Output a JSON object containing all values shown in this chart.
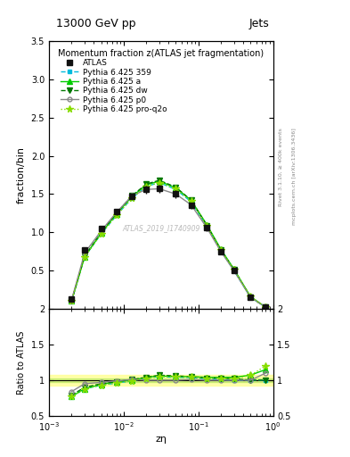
{
  "title_top": "13000 GeV pp",
  "title_right": "Jets",
  "right_label1": "Rivet 3.1.10, ≥ 400k events",
  "right_label2": "mcplots.cern.ch [arXiv:1306.3436]",
  "watermark": "ATLAS_2019_I1740909",
  "main_title": "Momentum fraction z(ATLAS jet fragmentation)",
  "xlabel": "zη",
  "ylabel_main": "fraction/bin",
  "ylabel_ratio": "Ratio to ATLAS",
  "ylim_main": [
    0.0,
    3.5
  ],
  "ylim_ratio": [
    0.5,
    2.0
  ],
  "xlim": [
    0.001,
    1.0
  ],
  "atlas_x": [
    0.002,
    0.003,
    0.005,
    0.008,
    0.013,
    0.02,
    0.03,
    0.05,
    0.08,
    0.13,
    0.2,
    0.3,
    0.5,
    0.8
  ],
  "atlas_y": [
    0.13,
    0.77,
    1.05,
    1.27,
    1.47,
    1.56,
    1.57,
    1.5,
    1.35,
    1.06,
    0.75,
    0.5,
    0.15,
    0.02
  ],
  "atlas_yerr": [
    0.02,
    0.04,
    0.04,
    0.04,
    0.04,
    0.05,
    0.05,
    0.05,
    0.04,
    0.04,
    0.03,
    0.02,
    0.01,
    0.005
  ],
  "pythia_x": [
    0.002,
    0.003,
    0.005,
    0.008,
    0.013,
    0.02,
    0.03,
    0.05,
    0.08,
    0.13,
    0.2,
    0.3,
    0.5,
    0.8
  ],
  "p359_y": [
    0.1,
    0.68,
    0.98,
    1.22,
    1.45,
    1.6,
    1.65,
    1.56,
    1.4,
    1.08,
    0.76,
    0.5,
    0.15,
    0.02
  ],
  "pa_y": [
    0.1,
    0.68,
    0.99,
    1.24,
    1.47,
    1.62,
    1.67,
    1.58,
    1.42,
    1.1,
    0.78,
    0.52,
    0.16,
    0.02
  ],
  "pdw_y": [
    0.1,
    0.69,
    1.0,
    1.25,
    1.48,
    1.63,
    1.68,
    1.59,
    1.42,
    1.09,
    0.77,
    0.51,
    0.15,
    0.02
  ],
  "pp0_y": [
    0.11,
    0.73,
    1.02,
    1.26,
    1.48,
    1.56,
    1.57,
    1.5,
    1.36,
    1.06,
    0.75,
    0.5,
    0.15,
    0.02
  ],
  "pproq2o_y": [
    0.1,
    0.68,
    0.98,
    1.22,
    1.45,
    1.6,
    1.65,
    1.57,
    1.41,
    1.09,
    0.77,
    0.51,
    0.16,
    0.02
  ],
  "p359_ratio": [
    0.77,
    0.88,
    0.93,
    0.96,
    0.99,
    1.03,
    1.05,
    1.04,
    1.04,
    1.02,
    1.01,
    1.0,
    1.0,
    1.0
  ],
  "pa_ratio": [
    0.77,
    0.88,
    0.94,
    0.98,
    1.0,
    1.04,
    1.06,
    1.05,
    1.05,
    1.04,
    1.04,
    1.04,
    1.07,
    1.15
  ],
  "pdw_ratio": [
    0.79,
    0.9,
    0.95,
    0.98,
    1.01,
    1.04,
    1.07,
    1.06,
    1.05,
    1.03,
    1.03,
    1.02,
    1.0,
    1.0
  ],
  "pp0_ratio": [
    0.84,
    0.95,
    0.97,
    0.99,
    1.01,
    1.0,
    1.0,
    1.0,
    1.01,
    1.0,
    1.0,
    1.0,
    1.0,
    1.1
  ],
  "pproq2o_ratio": [
    0.77,
    0.88,
    0.93,
    0.96,
    0.99,
    1.03,
    1.05,
    1.05,
    1.05,
    1.03,
    1.03,
    1.02,
    1.07,
    1.2
  ],
  "color_atlas": "#111111",
  "color_p359": "#00bbdd",
  "color_pa": "#00cc00",
  "color_pdw": "#007700",
  "color_pp0": "#888888",
  "color_pproq2o": "#88dd00",
  "legend_entries": [
    "ATLAS",
    "Pythia 6.425 359",
    "Pythia 6.425 a",
    "Pythia 6.425 dw",
    "Pythia 6.425 p0",
    "Pythia 6.425 pro-q2o"
  ]
}
